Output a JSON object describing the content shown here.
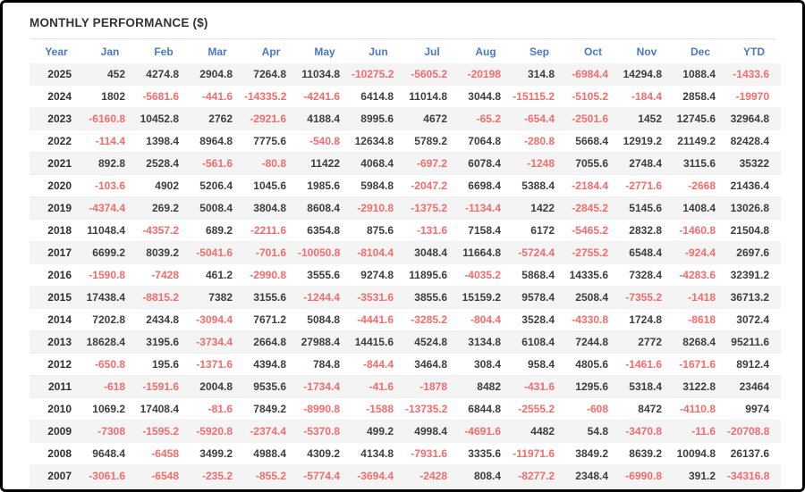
{
  "colors": {
    "frame_border": "#000000",
    "title_text": "#333333",
    "header_text": "#4a79c1",
    "positive_value": "#3d3d3f",
    "negative_value": "#f56c6c",
    "row_stripe": "#f4f4f4"
  },
  "chart_data": {
    "type": "table",
    "title": "MONTHLY PERFORMANCE ($)",
    "columns": [
      "Year",
      "Jan",
      "Feb",
      "Mar",
      "Apr",
      "May",
      "Jun",
      "Jul",
      "Aug",
      "Sep",
      "Oct",
      "Nov",
      "Dec",
      "YTD"
    ],
    "rows": [
      {
        "year": "2025",
        "values": [
          "452",
          "4274.8",
          "2904.8",
          "7264.8",
          "11034.8",
          "-10275.2",
          "-5605.2",
          "-20198",
          "314.8",
          "-6984.4",
          "14294.8",
          "1088.4",
          "-1433.6"
        ]
      },
      {
        "year": "2024",
        "values": [
          "1802",
          "-5681.6",
          "-441.6",
          "-14335.2",
          "-4241.6",
          "6414.8",
          "11014.8",
          "3044.8",
          "-15115.2",
          "-5105.2",
          "-184.4",
          "2858.4",
          "-19970"
        ]
      },
      {
        "year": "2023",
        "values": [
          "-6160.8",
          "10452.8",
          "2762",
          "-2921.6",
          "4188.4",
          "8995.6",
          "4672",
          "-65.2",
          "-654.4",
          "-2501.6",
          "1452",
          "12745.6",
          "32964.8"
        ]
      },
      {
        "year": "2022",
        "values": [
          "-114.4",
          "1398.4",
          "8964.8",
          "7775.6",
          "-540.8",
          "12634.8",
          "5789.2",
          "7064.8",
          "-280.8",
          "5668.4",
          "12919.2",
          "21149.2",
          "82428.4"
        ]
      },
      {
        "year": "2021",
        "values": [
          "892.8",
          "2528.4",
          "-561.6",
          "-80.8",
          "11422",
          "4068.4",
          "-697.2",
          "6078.4",
          "-1248",
          "7055.6",
          "2748.4",
          "3115.6",
          "35322"
        ]
      },
      {
        "year": "2020",
        "values": [
          "-103.6",
          "4902",
          "5206.4",
          "1045.6",
          "1985.6",
          "5984.8",
          "-2047.2",
          "6698.4",
          "5388.4",
          "-2184.4",
          "-2771.6",
          "-2668",
          "21436.4"
        ]
      },
      {
        "year": "2019",
        "values": [
          "-4374.4",
          "269.2",
          "5008.4",
          "3804.8",
          "8608.4",
          "-2910.8",
          "-1375.2",
          "-1134.4",
          "1422",
          "-2845.2",
          "5145.6",
          "1408.4",
          "13026.8"
        ]
      },
      {
        "year": "2018",
        "values": [
          "11048.4",
          "-4357.2",
          "689.2",
          "-2211.6",
          "6354.8",
          "875.6",
          "-131.6",
          "7158.4",
          "6172",
          "-5465.2",
          "2832.8",
          "-1460.8",
          "21504.8"
        ]
      },
      {
        "year": "2017",
        "values": [
          "6699.2",
          "8039.2",
          "-5041.6",
          "-701.6",
          "-10050.8",
          "-8104.4",
          "3048.4",
          "11664.8",
          "-5724.4",
          "-2755.2",
          "6548.4",
          "-924.4",
          "2697.6"
        ]
      },
      {
        "year": "2016",
        "values": [
          "-1590.8",
          "-7428",
          "461.2",
          "-2990.8",
          "3555.6",
          "9274.8",
          "11895.6",
          "-4035.2",
          "5868.4",
          "14335.6",
          "7328.4",
          "-4283.6",
          "32391.2"
        ]
      },
      {
        "year": "2015",
        "values": [
          "17438.4",
          "-8815.2",
          "7382",
          "3155.6",
          "-1244.4",
          "-3531.6",
          "3855.6",
          "15159.2",
          "9578.4",
          "2508.4",
          "-7355.2",
          "-1418",
          "36713.2"
        ]
      },
      {
        "year": "2014",
        "values": [
          "7202.8",
          "2434.8",
          "-3094.4",
          "7671.2",
          "5084.8",
          "-4441.6",
          "-3285.2",
          "-804.4",
          "3528.4",
          "-4330.8",
          "1724.8",
          "-8618",
          "3072.4"
        ]
      },
      {
        "year": "2013",
        "values": [
          "18628.4",
          "3195.6",
          "-3734.4",
          "2664.8",
          "27988.4",
          "14415.6",
          "4524.8",
          "3134.8",
          "6108.4",
          "7244.8",
          "2772",
          "8268.4",
          "95211.6"
        ]
      },
      {
        "year": "2012",
        "values": [
          "-650.8",
          "195.6",
          "-1371.6",
          "4394.8",
          "784.8",
          "-844.4",
          "3464.8",
          "308.4",
          "958.4",
          "4805.6",
          "-1461.6",
          "-1671.6",
          "8912.4"
        ]
      },
      {
        "year": "2011",
        "values": [
          "-618",
          "-1591.6",
          "2004.8",
          "9535.6",
          "-1734.4",
          "-41.6",
          "-1878",
          "8482",
          "-431.6",
          "1295.6",
          "5318.4",
          "3122.8",
          "23464"
        ]
      },
      {
        "year": "2010",
        "values": [
          "1069.2",
          "17408.4",
          "-81.6",
          "7849.2",
          "-8990.8",
          "-1588",
          "-13735.2",
          "6844.8",
          "-2555.2",
          "-608",
          "8472",
          "-4110.8",
          "9974"
        ]
      },
      {
        "year": "2009",
        "values": [
          "-7308",
          "-1595.2",
          "-5920.8",
          "-2374.4",
          "-5370.8",
          "499.2",
          "4998.4",
          "-4691.6",
          "4482",
          "54.8",
          "-3470.8",
          "-11.6",
          "-20708.8"
        ]
      },
      {
        "year": "2008",
        "values": [
          "9648.4",
          "-6458",
          "3499.2",
          "4988.4",
          "4309.2",
          "4134.8",
          "-7931.6",
          "3335.6",
          "-11971.6",
          "3849.2",
          "8639.2",
          "10094.8",
          "26137.6"
        ]
      },
      {
        "year": "2007",
        "values": [
          "-3061.6",
          "-6548",
          "-235.2",
          "-855.2",
          "-5774.4",
          "-3694.4",
          "-2428",
          "808.4",
          "-8277.2",
          "2348.4",
          "-6990.8",
          "391.2",
          "-34316.8"
        ]
      }
    ]
  }
}
